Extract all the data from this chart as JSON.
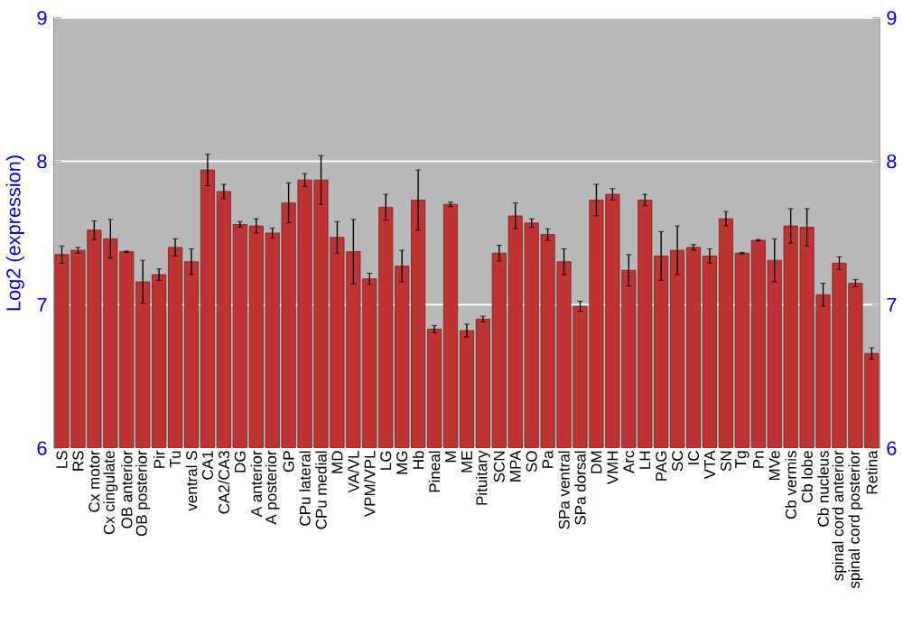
{
  "chart_data": {
    "type": "bar",
    "ylabel": "Log2 (expression)",
    "categories": [
      "LS",
      "RS",
      "Cx motor",
      "Cx cingulate",
      "OB anterior",
      "OB posterior",
      "Pir",
      "Tu",
      "ventral S",
      "CA1",
      "CA2/CA3",
      "DG",
      "A anterior",
      "A posterior",
      "GP",
      "CPu lateral",
      "CPu medial",
      "MD",
      "VA/VL",
      "VPM/VPL",
      "LG",
      "MG",
      "Hb",
      "Pineal",
      "M",
      "ME",
      "Pituitary",
      "SCN",
      "MPA",
      "SO",
      "Pa",
      "SPa ventral",
      "SPa dorsal",
      "DM",
      "VMH",
      "Arc",
      "LH",
      "PAG",
      "SC",
      "IC",
      "VTA",
      "SN",
      "Tg",
      "Pn",
      "MVe",
      "Cb vermis",
      "Cb lobe",
      "Cb nucleus",
      "spinal cord anterior",
      "spinal cord posterior",
      "Retina"
    ],
    "values": [
      7.35,
      7.38,
      7.52,
      7.46,
      7.37,
      7.16,
      7.21,
      7.4,
      7.3,
      7.94,
      7.79,
      7.56,
      7.55,
      7.5,
      7.71,
      7.87,
      7.87,
      7.47,
      7.37,
      7.18,
      7.68,
      7.27,
      7.73,
      6.83,
      7.7,
      6.82,
      6.9,
      7.36,
      7.62,
      7.57,
      7.49,
      7.3,
      6.99,
      7.73,
      7.77,
      7.24,
      7.73,
      7.34,
      7.38,
      7.4,
      7.34,
      7.6,
      7.36,
      7.45,
      7.31,
      7.55,
      7.54,
      7.07,
      7.29,
      7.15,
      6.66
    ],
    "errors": [
      0.06,
      0.02,
      0.065,
      0.135,
      0.005,
      0.15,
      0.04,
      0.06,
      0.09,
      0.11,
      0.05,
      0.02,
      0.05,
      0.035,
      0.14,
      0.045,
      0.17,
      0.11,
      0.225,
      0.04,
      0.09,
      0.11,
      0.21,
      0.025,
      0.015,
      0.045,
      0.02,
      0.055,
      0.09,
      0.03,
      0.04,
      0.09,
      0.035,
      0.11,
      0.04,
      0.11,
      0.04,
      0.17,
      0.17,
      0.02,
      0.05,
      0.05,
      0.005,
      0.005,
      0.15,
      0.12,
      0.13,
      0.08,
      0.045,
      0.025,
      0.04
    ],
    "color": "#c03333",
    "ylim": [
      6,
      9
    ],
    "yticks": [
      6,
      7,
      8,
      9
    ],
    "y2lim": [
      6,
      9
    ],
    "y2ticks": [
      6,
      7,
      8,
      9
    ],
    "grid": "y"
  }
}
